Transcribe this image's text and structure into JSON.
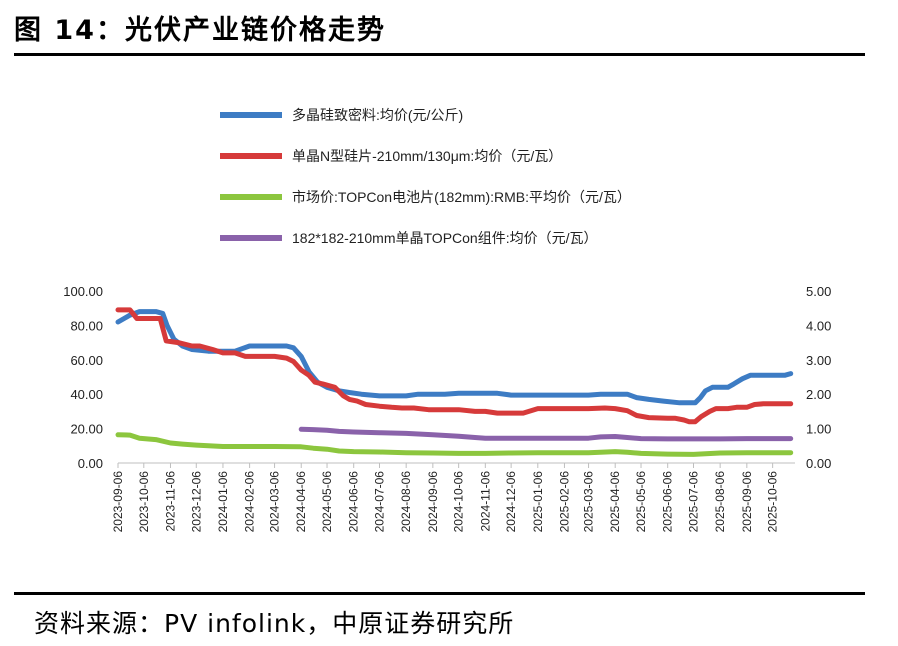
{
  "figure": {
    "title": "图 14：光伏产业链价格走势",
    "source": "资料来源：PV infolink，中原证券研究所"
  },
  "colors": {
    "blue": "#3d7cc4",
    "red": "#d63a3a",
    "green": "#8cc63e",
    "purple": "#8a62aa"
  },
  "chart_data": {
    "type": "line",
    "title": "",
    "xlabel": "",
    "ylabel": "",
    "left_axis": {
      "min": 0,
      "max": 100,
      "ticks": [
        "0.00",
        "20.00",
        "40.00",
        "60.00",
        "80.00",
        "100.00"
      ]
    },
    "right_axis": {
      "min": 0,
      "max": 5,
      "ticks": [
        "0.00",
        "1.00",
        "2.00",
        "3.00",
        "4.00",
        "5.00"
      ]
    },
    "grid": false,
    "legend_position": "top",
    "x_labels": [
      "2023-09-06",
      "2023-10-06",
      "2023-11-06",
      "2023-12-06",
      "2024-01-06",
      "2024-02-06",
      "2024-03-06",
      "2024-04-06",
      "2024-05-06",
      "2024-06-06",
      "2024-07-06",
      "2024-08-06",
      "2024-09-06",
      "2024-10-06",
      "2024-11-06",
      "2024-12-06",
      "2025-01-06",
      "2025-02-06",
      "2025-03-06",
      "2025-04-06",
      "2025-05-06",
      "2025-06-06",
      "2025-07-06",
      "2025-08-06",
      "2025-09-06",
      "2025-10-06"
    ],
    "x_start": "2023-09-06",
    "x_end": "2025-11-01",
    "series": [
      {
        "name": "多晶硅致密料:均价(元/公斤)",
        "axis": "left",
        "color_key": "blue",
        "points": [
          [
            "2023-09-06",
            82
          ],
          [
            "2023-09-20",
            86
          ],
          [
            "2023-10-01",
            88
          ],
          [
            "2023-10-20",
            88
          ],
          [
            "2023-10-28",
            87
          ],
          [
            "2023-11-02",
            80
          ],
          [
            "2023-11-10",
            72
          ],
          [
            "2023-11-20",
            68
          ],
          [
            "2023-12-01",
            66
          ],
          [
            "2023-12-20",
            65
          ],
          [
            "2024-01-20",
            65
          ],
          [
            "2024-02-06",
            68
          ],
          [
            "2024-02-20",
            68
          ],
          [
            "2024-03-20",
            68
          ],
          [
            "2024-03-28",
            67
          ],
          [
            "2024-04-06",
            62
          ],
          [
            "2024-04-15",
            53
          ],
          [
            "2024-04-25",
            47
          ],
          [
            "2024-05-06",
            44
          ],
          [
            "2024-05-20",
            42
          ],
          [
            "2024-06-01",
            41
          ],
          [
            "2024-06-15",
            40
          ],
          [
            "2024-07-06",
            39
          ],
          [
            "2024-08-06",
            39
          ],
          [
            "2024-08-20",
            40
          ],
          [
            "2024-09-20",
            40
          ],
          [
            "2024-10-06",
            40.5
          ],
          [
            "2024-11-06",
            40.5
          ],
          [
            "2024-11-20",
            40.5
          ],
          [
            "2024-12-06",
            39.5
          ],
          [
            "2025-01-06",
            39.5
          ],
          [
            "2025-02-06",
            39.5
          ],
          [
            "2025-03-06",
            39.5
          ],
          [
            "2025-03-20",
            40
          ],
          [
            "2025-04-20",
            40
          ],
          [
            "2025-05-01",
            38
          ],
          [
            "2025-05-15",
            37
          ],
          [
            "2025-06-01",
            36
          ],
          [
            "2025-06-20",
            35
          ],
          [
            "2025-07-01",
            35
          ],
          [
            "2025-07-08",
            35
          ],
          [
            "2025-07-14",
            38
          ],
          [
            "2025-07-20",
            42
          ],
          [
            "2025-07-28",
            44
          ],
          [
            "2025-08-06",
            44
          ],
          [
            "2025-08-15",
            44
          ],
          [
            "2025-08-22",
            46
          ],
          [
            "2025-09-01",
            49
          ],
          [
            "2025-09-10",
            51
          ],
          [
            "2025-09-20",
            51
          ],
          [
            "2025-10-06",
            51
          ],
          [
            "2025-10-20",
            51
          ],
          [
            "2025-10-27",
            52
          ]
        ]
      },
      {
        "name": "单晶N型硅片-210mm/130μm:均价（元/瓦）",
        "axis": "right",
        "color_key": "red",
        "points": [
          [
            "2023-09-06",
            4.45
          ],
          [
            "2023-09-20",
            4.45
          ],
          [
            "2023-09-28",
            4.2
          ],
          [
            "2023-10-06",
            4.2
          ],
          [
            "2023-10-25",
            4.2
          ],
          [
            "2023-11-01",
            3.55
          ],
          [
            "2023-11-15",
            3.5
          ],
          [
            "2023-12-01",
            3.4
          ],
          [
            "2023-12-10",
            3.4
          ],
          [
            "2023-12-25",
            3.3
          ],
          [
            "2024-01-06",
            3.2
          ],
          [
            "2024-01-20",
            3.2
          ],
          [
            "2024-02-01",
            3.1
          ],
          [
            "2024-02-20",
            3.1
          ],
          [
            "2024-03-06",
            3.1
          ],
          [
            "2024-03-20",
            3.05
          ],
          [
            "2024-03-28",
            2.95
          ],
          [
            "2024-04-06",
            2.7
          ],
          [
            "2024-04-15",
            2.55
          ],
          [
            "2024-04-22",
            2.35
          ],
          [
            "2024-05-01",
            2.3
          ],
          [
            "2024-05-15",
            2.2
          ],
          [
            "2024-05-25",
            1.95
          ],
          [
            "2024-06-01",
            1.85
          ],
          [
            "2024-06-10",
            1.8
          ],
          [
            "2024-06-20",
            1.7
          ],
          [
            "2024-07-06",
            1.65
          ],
          [
            "2024-07-20",
            1.62
          ],
          [
            "2024-08-01",
            1.6
          ],
          [
            "2024-08-15",
            1.6
          ],
          [
            "2024-09-01",
            1.55
          ],
          [
            "2024-09-20",
            1.55
          ],
          [
            "2024-10-06",
            1.55
          ],
          [
            "2024-10-25",
            1.5
          ],
          [
            "2024-11-06",
            1.5
          ],
          [
            "2024-11-20",
            1.45
          ],
          [
            "2024-12-06",
            1.45
          ],
          [
            "2024-12-20",
            1.45
          ],
          [
            "2025-01-06",
            1.58
          ],
          [
            "2025-02-06",
            1.58
          ],
          [
            "2025-03-06",
            1.58
          ],
          [
            "2025-03-25",
            1.6
          ],
          [
            "2025-04-06",
            1.58
          ],
          [
            "2025-04-20",
            1.52
          ],
          [
            "2025-05-01",
            1.38
          ],
          [
            "2025-05-15",
            1.32
          ],
          [
            "2025-06-06",
            1.3
          ],
          [
            "2025-06-15",
            1.3
          ],
          [
            "2025-06-25",
            1.25
          ],
          [
            "2025-07-01",
            1.2
          ],
          [
            "2025-07-08",
            1.2
          ],
          [
            "2025-07-15",
            1.35
          ],
          [
            "2025-07-25",
            1.5
          ],
          [
            "2025-08-01",
            1.58
          ],
          [
            "2025-08-15",
            1.58
          ],
          [
            "2025-08-25",
            1.62
          ],
          [
            "2025-09-06",
            1.62
          ],
          [
            "2025-09-15",
            1.7
          ],
          [
            "2025-09-25",
            1.72
          ],
          [
            "2025-10-06",
            1.72
          ],
          [
            "2025-10-20",
            1.72
          ],
          [
            "2025-10-27",
            1.72
          ]
        ]
      },
      {
        "name": "市场价:TOPCon电池片(182mm):RMB:平均价（元/瓦）",
        "axis": "right",
        "color_key": "green",
        "points": [
          [
            "2023-09-06",
            0.82
          ],
          [
            "2023-09-20",
            0.81
          ],
          [
            "2023-10-01",
            0.72
          ],
          [
            "2023-10-20",
            0.68
          ],
          [
            "2023-11-06",
            0.58
          ],
          [
            "2023-11-20",
            0.55
          ],
          [
            "2023-12-06",
            0.52
          ],
          [
            "2024-01-06",
            0.48
          ],
          [
            "2024-02-06",
            0.48
          ],
          [
            "2024-03-06",
            0.48
          ],
          [
            "2024-04-06",
            0.47
          ],
          [
            "2024-04-20",
            0.43
          ],
          [
            "2024-05-06",
            0.4
          ],
          [
            "2024-05-20",
            0.35
          ],
          [
            "2024-06-06",
            0.33
          ],
          [
            "2024-07-06",
            0.32
          ],
          [
            "2024-08-06",
            0.3
          ],
          [
            "2024-09-06",
            0.29
          ],
          [
            "2024-10-06",
            0.28
          ],
          [
            "2024-11-06",
            0.28
          ],
          [
            "2024-12-06",
            0.29
          ],
          [
            "2025-01-06",
            0.3
          ],
          [
            "2025-02-06",
            0.3
          ],
          [
            "2025-03-06",
            0.3
          ],
          [
            "2025-04-06",
            0.33
          ],
          [
            "2025-04-20",
            0.31
          ],
          [
            "2025-05-06",
            0.28
          ],
          [
            "2025-06-06",
            0.26
          ],
          [
            "2025-07-06",
            0.25
          ],
          [
            "2025-07-20",
            0.27
          ],
          [
            "2025-08-06",
            0.29
          ],
          [
            "2025-09-06",
            0.3
          ],
          [
            "2025-10-06",
            0.3
          ],
          [
            "2025-10-27",
            0.3
          ]
        ]
      },
      {
        "name": "182*182-210mm单晶TOPCon组件:均价（元/瓦）",
        "axis": "right",
        "color_key": "purple",
        "points": [
          [
            "2024-04-06",
            0.98
          ],
          [
            "2024-04-20",
            0.97
          ],
          [
            "2024-05-06",
            0.95
          ],
          [
            "2024-05-20",
            0.92
          ],
          [
            "2024-06-06",
            0.9
          ],
          [
            "2024-07-06",
            0.88
          ],
          [
            "2024-08-06",
            0.86
          ],
          [
            "2024-09-06",
            0.82
          ],
          [
            "2024-10-06",
            0.78
          ],
          [
            "2024-10-25",
            0.74
          ],
          [
            "2024-11-06",
            0.72
          ],
          [
            "2024-12-06",
            0.72
          ],
          [
            "2025-01-06",
            0.72
          ],
          [
            "2025-02-06",
            0.72
          ],
          [
            "2025-03-06",
            0.72
          ],
          [
            "2025-03-20",
            0.76
          ],
          [
            "2025-04-06",
            0.77
          ],
          [
            "2025-04-20",
            0.74
          ],
          [
            "2025-05-06",
            0.71
          ],
          [
            "2025-06-06",
            0.7
          ],
          [
            "2025-07-06",
            0.7
          ],
          [
            "2025-08-06",
            0.7
          ],
          [
            "2025-09-06",
            0.71
          ],
          [
            "2025-10-06",
            0.71
          ],
          [
            "2025-10-27",
            0.71
          ]
        ]
      }
    ]
  }
}
